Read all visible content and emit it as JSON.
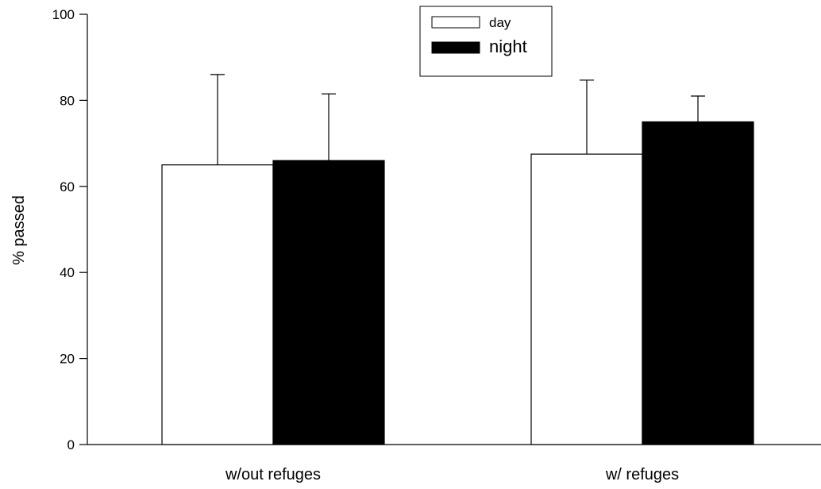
{
  "chart_data": {
    "type": "bar",
    "title": "",
    "xlabel": "",
    "ylabel": "% passed",
    "ylim": [
      0,
      100
    ],
    "yticks": [
      0,
      20,
      40,
      60,
      80,
      100
    ],
    "grid": false,
    "legend_position": "top-center",
    "categories": [
      "w/out refuges",
      "w/ refuges"
    ],
    "series": [
      {
        "name": "day",
        "color": "#ffffff",
        "values": [
          65,
          67.5
        ],
        "error_upper": [
          86,
          84.7
        ]
      },
      {
        "name": "night",
        "color": "#000000",
        "values": [
          66,
          75
        ],
        "error_upper": [
          81.5,
          81
        ]
      }
    ]
  }
}
